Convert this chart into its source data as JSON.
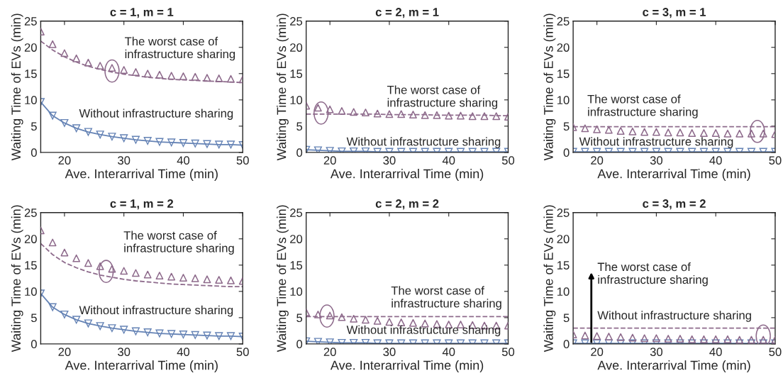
{
  "chart_data": [
    {
      "type": "line",
      "title": "c = 1, m = 1",
      "xlabel": "Ave. Interarrival Time (min)",
      "ylabel": "Waiting Time of EVs (min)",
      "x": [
        16,
        18,
        20,
        22,
        24,
        26,
        28,
        30,
        32,
        34,
        36,
        38,
        40,
        42,
        44,
        46,
        48,
        50
      ],
      "xlim": [
        16,
        50
      ],
      "ylim": [
        0,
        25
      ],
      "xticks": [
        20,
        30,
        40,
        50
      ],
      "yticks": [
        0,
        5,
        10,
        15,
        20,
        25
      ],
      "grid": false,
      "series": [
        {
          "type": "scatter",
          "marker": "triangle",
          "color": "#8e6b8c",
          "values": [
            23,
            20.6,
            18.9,
            17.9,
            17.1,
            16.5,
            16.1,
            15.7,
            15.3,
            15.0,
            14.8,
            14.6,
            14.5,
            14.4,
            14.2,
            14.1,
            14.0,
            13.9
          ]
        },
        {
          "type": "line",
          "marker": "none",
          "line_style": "dashed",
          "color": "#8e6b8c",
          "values": [
            21.2,
            19.5,
            18.2,
            17.2,
            16.4,
            15.8,
            15.3,
            14.9,
            14.6,
            14.3,
            14.1,
            13.9,
            13.8,
            13.7,
            13.6,
            13.5,
            13.4,
            13.3
          ]
        },
        {
          "type": "line",
          "marker": "triangle_down",
          "line_style": "solid",
          "color": "#6583b5",
          "values": [
            9.6,
            7.0,
            5.6,
            4.6,
            3.9,
            3.4,
            3.0,
            2.7,
            2.4,
            2.2,
            2.0,
            1.9,
            1.8,
            1.7,
            1.6,
            1.5,
            1.5,
            1.4
          ]
        }
      ],
      "annotations": [
        "The worst case of\ninfrastructure sharing",
        "Without infrastructure sharing"
      ]
    },
    {
      "type": "line",
      "title": "c = 2, m = 1",
      "xlabel": "Ave. Interarrival Time (min)",
      "ylabel": "Waiting Time of EVs (min)",
      "x": [
        16,
        18,
        20,
        22,
        24,
        26,
        28,
        30,
        32,
        34,
        36,
        38,
        40,
        42,
        44,
        46,
        48,
        50
      ],
      "xlim": [
        16,
        50
      ],
      "ylim": [
        0,
        25
      ],
      "xticks": [
        20,
        30,
        40,
        50
      ],
      "yticks": [
        0,
        5,
        10,
        15,
        20,
        25
      ],
      "grid": false,
      "series": [
        {
          "type": "scatter",
          "marker": "triangle",
          "color": "#8e6b8c",
          "values": [
            8.9,
            8.5,
            8.2,
            7.9,
            7.7,
            7.6,
            7.4,
            7.3,
            7.3,
            7.2,
            7.1,
            7.1,
            7.0,
            7.0,
            6.9,
            6.9,
            6.9,
            6.8
          ]
        },
        {
          "type": "line",
          "marker": "none",
          "line_style": "dashed",
          "color": "#8e6b8c",
          "values": [
            7.3,
            7.3,
            7.3,
            7.3,
            7.3,
            7.3,
            7.3,
            7.2,
            7.2,
            7.2,
            7.2,
            7.1,
            7.1,
            7.1,
            7.1,
            7.1,
            7.0,
            7.0
          ]
        },
        {
          "type": "line",
          "marker": "triangle_down",
          "line_style": "solid",
          "color": "#6583b5",
          "values": [
            0.5,
            0.4,
            0.3,
            0.2,
            0.2,
            0.2,
            0.1,
            0.1,
            0.1,
            0.1,
            0.1,
            0.1,
            0.1,
            0.1,
            0.1,
            0.1,
            0.1,
            0.1
          ]
        }
      ],
      "annotations": [
        "The worst case of\ninfrastructure sharing",
        "Without infrastructure sharing"
      ]
    },
    {
      "type": "line",
      "title": "c = 3, m = 1",
      "xlabel": "Ave. Interarrival Time (min)",
      "ylabel": "Waiting Time of EVs (min)",
      "x": [
        16,
        18,
        20,
        22,
        24,
        26,
        28,
        30,
        32,
        34,
        36,
        38,
        40,
        42,
        44,
        46,
        48,
        50
      ],
      "xlim": [
        16,
        50
      ],
      "ylim": [
        0,
        25
      ],
      "xticks": [
        20,
        30,
        40,
        50
      ],
      "yticks": [
        0,
        5,
        10,
        15,
        20,
        25
      ],
      "grid": false,
      "series": [
        {
          "type": "scatter",
          "marker": "triangle",
          "color": "#8e6b8c",
          "values": [
            4.8,
            4.6,
            4.4,
            4.3,
            4.1,
            4.0,
            3.9,
            3.9,
            3.8,
            3.8,
            3.7,
            3.7,
            3.7,
            3.6,
            3.6,
            3.6,
            3.6,
            3.5
          ]
        },
        {
          "type": "line",
          "marker": "none",
          "line_style": "dashed",
          "color": "#8e6b8c",
          "values": [
            4.9,
            4.9,
            4.9,
            4.9,
            4.9,
            4.9,
            4.9,
            4.9,
            4.9,
            4.9,
            4.9,
            4.9,
            4.9,
            4.9,
            4.9,
            4.9,
            4.9,
            4.9
          ]
        },
        {
          "type": "line",
          "marker": "triangle_down",
          "line_style": "solid",
          "color": "#6583b5",
          "values": [
            0.1,
            0.1,
            0.1,
            0.1,
            0.1,
            0.1,
            0.1,
            0.1,
            0.1,
            0.1,
            0.1,
            0.1,
            0.1,
            0.1,
            0.1,
            0.1,
            0.1,
            0.1
          ]
        }
      ],
      "annotations": [
        "The worst case of\ninfrastructure sharing",
        "Without infrastructure sharing"
      ]
    },
    {
      "type": "line",
      "title": "c = 1, m = 2",
      "xlabel": "Ave. Interarrival Time (min)",
      "ylabel": "Waiting Time of EVs (min)",
      "x": [
        16,
        18,
        20,
        22,
        24,
        26,
        28,
        30,
        32,
        34,
        36,
        38,
        40,
        42,
        44,
        46,
        48,
        50
      ],
      "xlim": [
        16,
        50
      ],
      "ylim": [
        0,
        25
      ],
      "xticks": [
        20,
        30,
        40,
        50
      ],
      "yticks": [
        0,
        5,
        10,
        15,
        20,
        25
      ],
      "grid": false,
      "series": [
        {
          "type": "scatter",
          "marker": "triangle",
          "color": "#8e6b8c",
          "values": [
            21.6,
            19.3,
            17.4,
            16.3,
            15.4,
            14.8,
            14.3,
            13.9,
            13.5,
            13.2,
            13.0,
            12.8,
            12.6,
            12.5,
            12.3,
            12.2,
            12.1,
            12.0
          ]
        },
        {
          "type": "line",
          "marker": "none",
          "line_style": "dashed",
          "color": "#8e6b8c",
          "values": [
            19.1,
            17.0,
            15.5,
            14.5,
            13.7,
            13.1,
            12.7,
            12.3,
            12.0,
            11.8,
            11.6,
            11.4,
            11.3,
            11.2,
            11.1,
            11.0,
            10.9,
            10.9
          ]
        },
        {
          "type": "line",
          "marker": "triangle_down",
          "line_style": "solid",
          "color": "#6583b5",
          "values": [
            9.6,
            7.0,
            5.6,
            4.6,
            3.9,
            3.4,
            3.0,
            2.7,
            2.4,
            2.2,
            2.0,
            1.9,
            1.8,
            1.7,
            1.6,
            1.5,
            1.5,
            1.4
          ]
        }
      ],
      "annotations": [
        "The worst case of\ninfrastructure sharing",
        "Without infrastructure sharing"
      ]
    },
    {
      "type": "line",
      "title": "c = 2, m = 2",
      "xlabel": "Ave. Interarrival Time (min)",
      "ylabel": "Waiting Time of EVs (min)",
      "x": [
        16,
        18,
        20,
        22,
        24,
        26,
        28,
        30,
        32,
        34,
        36,
        38,
        40,
        42,
        44,
        46,
        48,
        50
      ],
      "xlim": [
        16,
        50
      ],
      "ylim": [
        0,
        25
      ],
      "xticks": [
        20,
        30,
        40,
        50
      ],
      "yticks": [
        0,
        5,
        10,
        15,
        20,
        25
      ],
      "grid": false,
      "series": [
        {
          "type": "scatter",
          "marker": "triangle",
          "color": "#8e6b8c",
          "values": [
            6.0,
            5.6,
            5.4,
            5.1,
            4.8,
            4.6,
            4.4,
            4.2,
            4.1,
            4.0,
            3.9,
            3.8,
            3.7,
            3.7,
            3.6,
            3.5,
            3.5,
            3.5
          ]
        },
        {
          "type": "line",
          "marker": "none",
          "line_style": "dashed",
          "color": "#8e6b8c",
          "values": [
            5.2,
            5.2,
            5.2,
            5.2,
            5.2,
            5.2,
            5.2,
            5.2,
            5.2,
            5.2,
            5.2,
            5.2,
            5.2,
            5.2,
            5.2,
            5.2,
            5.2,
            5.2
          ]
        },
        {
          "type": "line",
          "marker": "triangle_down",
          "line_style": "solid",
          "color": "#6583b5",
          "values": [
            0.5,
            0.4,
            0.3,
            0.2,
            0.2,
            0.2,
            0.1,
            0.1,
            0.1,
            0.1,
            0.1,
            0.1,
            0.1,
            0.1,
            0.1,
            0.1,
            0.1,
            0.1
          ]
        }
      ],
      "annotations": [
        "The worst case of\ninfrastructure sharing",
        "Without infrastructure sharing"
      ]
    },
    {
      "type": "line",
      "title": "c = 3, m = 2",
      "xlabel": "Ave. Interarrival Time (min)",
      "ylabel": "Waiting Time of EVs (min)",
      "x": [
        16,
        18,
        20,
        22,
        24,
        26,
        28,
        30,
        32,
        34,
        36,
        38,
        40,
        42,
        44,
        46,
        48,
        50
      ],
      "xlim": [
        16,
        50
      ],
      "ylim": [
        0,
        25
      ],
      "xticks": [
        20,
        30,
        40,
        50
      ],
      "yticks": [
        0,
        5,
        10,
        15,
        20,
        25
      ],
      "grid": false,
      "series": [
        {
          "type": "scatter",
          "marker": "triangle",
          "color": "#8e6b8c",
          "values": [
            1.8,
            1.6,
            1.5,
            1.4,
            1.3,
            1.2,
            1.1,
            1.1,
            1.0,
            1.0,
            0.9,
            0.9,
            0.9,
            0.9,
            0.8,
            0.8,
            0.8,
            0.8
          ]
        },
        {
          "type": "line",
          "marker": "none",
          "line_style": "dashed",
          "color": "#8e6b8c",
          "values": [
            3.0,
            3.0,
            3.0,
            3.0,
            3.0,
            3.0,
            3.0,
            3.0,
            3.0,
            3.0,
            3.0,
            3.0,
            3.0,
            3.0,
            3.0,
            3.0,
            3.0,
            3.0
          ]
        },
        {
          "type": "line",
          "marker": "triangle_down",
          "line_style": "solid",
          "color": "#6583b5",
          "values": [
            0.1,
            0.1,
            0.1,
            0.1,
            0.1,
            0.1,
            0.1,
            0.1,
            0.1,
            0.1,
            0.1,
            0.1,
            0.1,
            0.1,
            0.1,
            0.1,
            0.1,
            0.1
          ]
        }
      ],
      "annotations": [
        "The worst case of\ninfrastructure sharing",
        "Without infrastructure sharing"
      ]
    }
  ]
}
